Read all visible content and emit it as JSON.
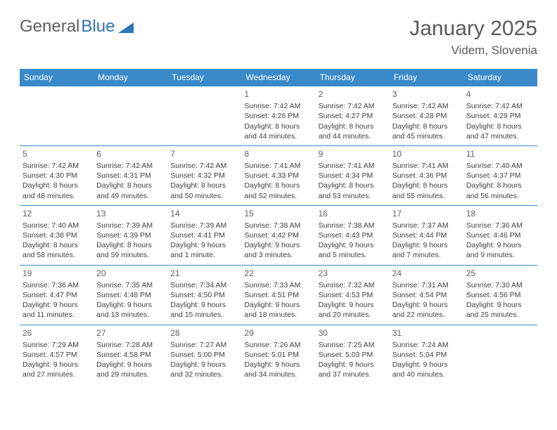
{
  "logo": {
    "text1": "General",
    "text2": "Blue",
    "triangle_color": "#2e75b6"
  },
  "header": {
    "month_title": "January 2025",
    "location": "Videm, Slovenia"
  },
  "colors": {
    "header_bg": "#3a8ac9",
    "header_fg": "#ffffff",
    "border": "#3a8ac9",
    "text": "#404040"
  },
  "weekdays": [
    "Sunday",
    "Monday",
    "Tuesday",
    "Wednesday",
    "Thursday",
    "Friday",
    "Saturday"
  ],
  "weeks": [
    [
      {},
      {},
      {},
      {
        "day": "1",
        "sunrise": "Sunrise: 7:42 AM",
        "sunset": "Sunset: 4:26 PM",
        "dl1": "Daylight: 8 hours",
        "dl2": "and 44 minutes."
      },
      {
        "day": "2",
        "sunrise": "Sunrise: 7:42 AM",
        "sunset": "Sunset: 4:27 PM",
        "dl1": "Daylight: 8 hours",
        "dl2": "and 44 minutes."
      },
      {
        "day": "3",
        "sunrise": "Sunrise: 7:42 AM",
        "sunset": "Sunset: 4:28 PM",
        "dl1": "Daylight: 8 hours",
        "dl2": "and 45 minutes."
      },
      {
        "day": "4",
        "sunrise": "Sunrise: 7:42 AM",
        "sunset": "Sunset: 4:29 PM",
        "dl1": "Daylight: 8 hours",
        "dl2": "and 47 minutes."
      }
    ],
    [
      {
        "day": "5",
        "sunrise": "Sunrise: 7:42 AM",
        "sunset": "Sunset: 4:30 PM",
        "dl1": "Daylight: 8 hours",
        "dl2": "and 48 minutes."
      },
      {
        "day": "6",
        "sunrise": "Sunrise: 7:42 AM",
        "sunset": "Sunset: 4:31 PM",
        "dl1": "Daylight: 8 hours",
        "dl2": "and 49 minutes."
      },
      {
        "day": "7",
        "sunrise": "Sunrise: 7:42 AM",
        "sunset": "Sunset: 4:32 PM",
        "dl1": "Daylight: 8 hours",
        "dl2": "and 50 minutes."
      },
      {
        "day": "8",
        "sunrise": "Sunrise: 7:41 AM",
        "sunset": "Sunset: 4:33 PM",
        "dl1": "Daylight: 8 hours",
        "dl2": "and 52 minutes."
      },
      {
        "day": "9",
        "sunrise": "Sunrise: 7:41 AM",
        "sunset": "Sunset: 4:34 PM",
        "dl1": "Daylight: 8 hours",
        "dl2": "and 53 minutes."
      },
      {
        "day": "10",
        "sunrise": "Sunrise: 7:41 AM",
        "sunset": "Sunset: 4:36 PM",
        "dl1": "Daylight: 8 hours",
        "dl2": "and 55 minutes."
      },
      {
        "day": "11",
        "sunrise": "Sunrise: 7:40 AM",
        "sunset": "Sunset: 4:37 PM",
        "dl1": "Daylight: 8 hours",
        "dl2": "and 56 minutes."
      }
    ],
    [
      {
        "day": "12",
        "sunrise": "Sunrise: 7:40 AM",
        "sunset": "Sunset: 4:38 PM",
        "dl1": "Daylight: 8 hours",
        "dl2": "and 58 minutes."
      },
      {
        "day": "13",
        "sunrise": "Sunrise: 7:39 AM",
        "sunset": "Sunset: 4:39 PM",
        "dl1": "Daylight: 8 hours",
        "dl2": "and 59 minutes."
      },
      {
        "day": "14",
        "sunrise": "Sunrise: 7:39 AM",
        "sunset": "Sunset: 4:41 PM",
        "dl1": "Daylight: 9 hours",
        "dl2": "and 1 minute."
      },
      {
        "day": "15",
        "sunrise": "Sunrise: 7:38 AM",
        "sunset": "Sunset: 4:42 PM",
        "dl1": "Daylight: 9 hours",
        "dl2": "and 3 minutes."
      },
      {
        "day": "16",
        "sunrise": "Sunrise: 7:38 AM",
        "sunset": "Sunset: 4:43 PM",
        "dl1": "Daylight: 9 hours",
        "dl2": "and 5 minutes."
      },
      {
        "day": "17",
        "sunrise": "Sunrise: 7:37 AM",
        "sunset": "Sunset: 4:44 PM",
        "dl1": "Daylight: 9 hours",
        "dl2": "and 7 minutes."
      },
      {
        "day": "18",
        "sunrise": "Sunrise: 7:36 AM",
        "sunset": "Sunset: 4:46 PM",
        "dl1": "Daylight: 9 hours",
        "dl2": "and 9 minutes."
      }
    ],
    [
      {
        "day": "19",
        "sunrise": "Sunrise: 7:36 AM",
        "sunset": "Sunset: 4:47 PM",
        "dl1": "Daylight: 9 hours",
        "dl2": "and 11 minutes."
      },
      {
        "day": "20",
        "sunrise": "Sunrise: 7:35 AM",
        "sunset": "Sunset: 4:48 PM",
        "dl1": "Daylight: 9 hours",
        "dl2": "and 13 minutes."
      },
      {
        "day": "21",
        "sunrise": "Sunrise: 7:34 AM",
        "sunset": "Sunset: 4:50 PM",
        "dl1": "Daylight: 9 hours",
        "dl2": "and 15 minutes."
      },
      {
        "day": "22",
        "sunrise": "Sunrise: 7:33 AM",
        "sunset": "Sunset: 4:51 PM",
        "dl1": "Daylight: 9 hours",
        "dl2": "and 18 minutes."
      },
      {
        "day": "23",
        "sunrise": "Sunrise: 7:32 AM",
        "sunset": "Sunset: 4:53 PM",
        "dl1": "Daylight: 9 hours",
        "dl2": "and 20 minutes."
      },
      {
        "day": "24",
        "sunrise": "Sunrise: 7:31 AM",
        "sunset": "Sunset: 4:54 PM",
        "dl1": "Daylight: 9 hours",
        "dl2": "and 22 minutes."
      },
      {
        "day": "25",
        "sunrise": "Sunrise: 7:30 AM",
        "sunset": "Sunset: 4:56 PM",
        "dl1": "Daylight: 9 hours",
        "dl2": "and 25 minutes."
      }
    ],
    [
      {
        "day": "26",
        "sunrise": "Sunrise: 7:29 AM",
        "sunset": "Sunset: 4:57 PM",
        "dl1": "Daylight: 9 hours",
        "dl2": "and 27 minutes."
      },
      {
        "day": "27",
        "sunrise": "Sunrise: 7:28 AM",
        "sunset": "Sunset: 4:58 PM",
        "dl1": "Daylight: 9 hours",
        "dl2": "and 29 minutes."
      },
      {
        "day": "28",
        "sunrise": "Sunrise: 7:27 AM",
        "sunset": "Sunset: 5:00 PM",
        "dl1": "Daylight: 9 hours",
        "dl2": "and 32 minutes."
      },
      {
        "day": "29",
        "sunrise": "Sunrise: 7:26 AM",
        "sunset": "Sunset: 5:01 PM",
        "dl1": "Daylight: 9 hours",
        "dl2": "and 34 minutes."
      },
      {
        "day": "30",
        "sunrise": "Sunrise: 7:25 AM",
        "sunset": "Sunset: 5:03 PM",
        "dl1": "Daylight: 9 hours",
        "dl2": "and 37 minutes."
      },
      {
        "day": "31",
        "sunrise": "Sunrise: 7:24 AM",
        "sunset": "Sunset: 5:04 PM",
        "dl1": "Daylight: 9 hours",
        "dl2": "and 40 minutes."
      },
      {}
    ]
  ]
}
